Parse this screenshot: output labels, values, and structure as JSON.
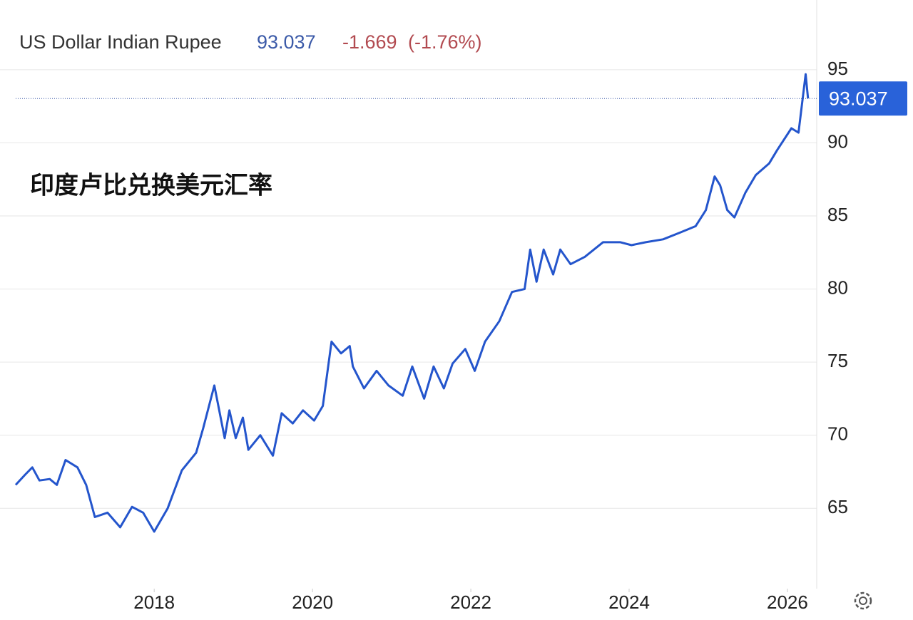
{
  "chart_data": {
    "type": "line",
    "title": "US Dollar Indian Rupee",
    "last_price": 93.037,
    "change": -1.669,
    "change_percent": {
      "value": -1.76,
      "label": "(-1.76%)"
    },
    "annotation": "印度卢比兑换美元汇率",
    "x": [
      2016.25,
      2016.37,
      2016.46,
      2016.55,
      2016.68,
      2016.77,
      2016.88,
      2017.03,
      2017.14,
      2017.25,
      2017.41,
      2017.57,
      2017.72,
      2017.86,
      2018.0,
      2018.17,
      2018.35,
      2018.53,
      2018.62,
      2018.76,
      2018.89,
      2018.95,
      2019.03,
      2019.12,
      2019.19,
      2019.34,
      2019.5,
      2019.61,
      2019.75,
      2019.88,
      2020.02,
      2020.13,
      2020.24,
      2020.36,
      2020.47,
      2020.51,
      2020.65,
      2020.81,
      2020.96,
      2021.14,
      2021.26,
      2021.41,
      2021.53,
      2021.66,
      2021.77,
      2021.93,
      2022.05,
      2022.18,
      2022.36,
      2022.52,
      2022.68,
      2022.75,
      2022.83,
      2022.92,
      2023.04,
      2023.13,
      2023.26,
      2023.44,
      2023.67,
      2023.89,
      2024.03,
      2024.21,
      2024.43,
      2024.66,
      2024.84,
      2024.97,
      2025.08,
      2025.15,
      2025.24,
      2025.33,
      2025.47,
      2025.6,
      2025.77,
      2025.87,
      2026.05,
      2026.14,
      2026.23,
      2026.26
    ],
    "series": [
      {
        "name": "USD/INR",
        "color": "#2455cc",
        "values": [
          66.6,
          67.3,
          67.8,
          66.9,
          67.0,
          66.6,
          68.3,
          67.8,
          66.6,
          64.4,
          64.7,
          63.7,
          65.1,
          64.7,
          63.4,
          65.0,
          67.6,
          68.8,
          70.5,
          73.4,
          69.8,
          71.7,
          69.8,
          71.2,
          69.0,
          70.0,
          68.6,
          71.5,
          70.8,
          71.7,
          71.0,
          72.0,
          76.4,
          75.6,
          76.1,
          74.7,
          73.2,
          74.4,
          73.4,
          72.7,
          74.7,
          72.5,
          74.7,
          73.2,
          74.9,
          75.9,
          74.4,
          76.4,
          77.8,
          79.8,
          80.0,
          82.7,
          80.5,
          82.7,
          81.0,
          82.7,
          81.7,
          82.2,
          83.2,
          83.2,
          83.0,
          83.2,
          83.4,
          83.9,
          84.3,
          85.4,
          87.7,
          87.1,
          85.4,
          84.9,
          86.6,
          87.8,
          88.6,
          89.5,
          91.0,
          90.7,
          94.7,
          93.037
        ]
      }
    ],
    "xlim": [
      2016.25,
      2026.37
    ],
    "xticks": [
      2018,
      2020,
      2022,
      2024,
      2026
    ],
    "ylim": [
      59.5,
      98.8
    ],
    "yticks": [
      65,
      70,
      75,
      80,
      85,
      90,
      95
    ],
    "grid": true
  }
}
